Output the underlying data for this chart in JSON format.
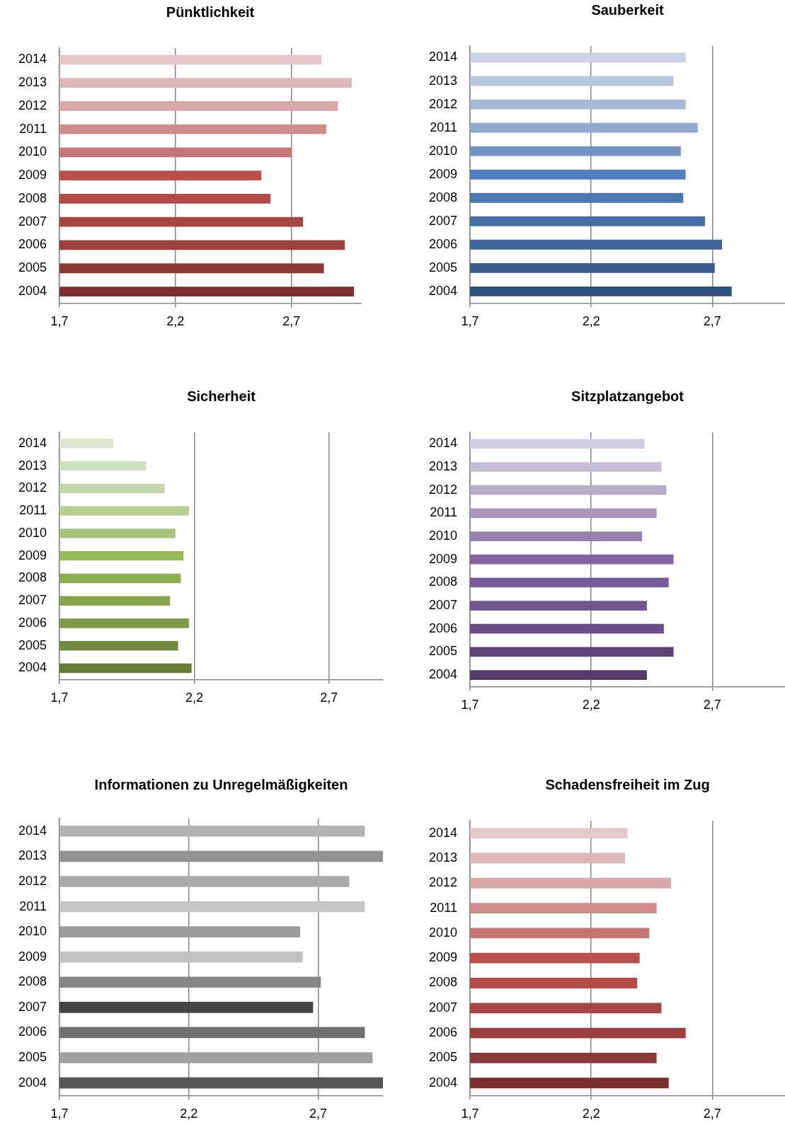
{
  "chart_data": [
    {
      "type": "bar",
      "orientation": "horizontal",
      "title": "Pünktlichkeit",
      "categories": [
        "2014",
        "2013",
        "2012",
        "2011",
        "2010",
        "2009",
        "2008",
        "2007",
        "2006",
        "2005",
        "2004"
      ],
      "values": [
        2.83,
        2.96,
        2.9,
        2.85,
        2.7,
        2.57,
        2.61,
        2.75,
        2.93,
        2.84,
        2.97
      ],
      "colors": [
        "#e5c8c9",
        "#ddb8b8",
        "#d8a7a7",
        "#d08c8c",
        "#c57573",
        "#bc4f4d",
        "#b54a48",
        "#a64644",
        "#9c403e",
        "#8b3937",
        "#7c2f2e"
      ],
      "xlim": [
        1.7,
        3.0
      ],
      "xticks": [
        {
          "value": 1.7,
          "label": "1,7"
        },
        {
          "value": 2.2,
          "label": "2,2"
        },
        {
          "value": 2.7,
          "label": "2,7"
        }
      ],
      "grid": "x"
    },
    {
      "type": "bar",
      "orientation": "horizontal",
      "title": "Sauberkeit",
      "categories": [
        "2014",
        "2013",
        "2012",
        "2011",
        "2010",
        "2009",
        "2008",
        "2007",
        "2006",
        "2005",
        "2004"
      ],
      "values": [
        2.59,
        2.54,
        2.59,
        2.64,
        2.57,
        2.59,
        2.58,
        2.67,
        2.74,
        2.71,
        2.78
      ],
      "colors": [
        "#cbd3e6",
        "#b9c6e0",
        "#a8b9d8",
        "#91a9d1",
        "#7393c4",
        "#4f7fbe",
        "#4a78b0",
        "#436fa6",
        "#3f659a",
        "#395c8a",
        "#30517b"
      ],
      "xlim": [
        1.7,
        3.0
      ],
      "xticks": [
        {
          "value": 1.7,
          "label": "1,7"
        },
        {
          "value": 2.2,
          "label": "2,2"
        },
        {
          "value": 2.7,
          "label": "2,7"
        }
      ],
      "grid": "x"
    },
    {
      "type": "bar",
      "orientation": "horizontal",
      "title": "Sicherheit",
      "categories": [
        "2014",
        "2013",
        "2012",
        "2011",
        "2010",
        "2009",
        "2008",
        "2007",
        "2006",
        "2005",
        "2004"
      ],
      "values": [
        1.9,
        2.02,
        2.09,
        2.18,
        2.13,
        2.16,
        2.15,
        2.11,
        2.18,
        2.14,
        2.19
      ],
      "colors": [
        "#dbe6d1",
        "#d1e0c0",
        "#c4d6ab",
        "#b7cf93",
        "#a8c47c",
        "#98ba58",
        "#8fad52",
        "#86a24c",
        "#7d9846",
        "#728b41",
        "#667d38"
      ],
      "xlim": [
        1.7,
        2.9
      ],
      "xticks": [
        {
          "value": 1.7,
          "label": "1,7"
        },
        {
          "value": 2.2,
          "label": "2,2"
        },
        {
          "value": 2.7,
          "label": "2,7"
        }
      ],
      "grid": "x"
    },
    {
      "type": "bar",
      "orientation": "horizontal",
      "title": "Sitzplatzangebot",
      "categories": [
        "2014",
        "2013",
        "2012",
        "2011",
        "2010",
        "2009",
        "2008",
        "2007",
        "2006",
        "2005",
        "2004"
      ],
      "values": [
        2.42,
        2.49,
        2.51,
        2.47,
        2.41,
        2.54,
        2.52,
        2.43,
        2.5,
        2.54,
        2.43
      ],
      "colors": [
        "#d3cedf",
        "#c5bcd5",
        "#b8adc9",
        "#a796bd",
        "#9682b1",
        "#8264a2",
        "#775d98",
        "#6f578f",
        "#665084",
        "#5c4576",
        "#523e69"
      ],
      "xlim": [
        1.7,
        3.0
      ],
      "xticks": [
        {
          "value": 1.7,
          "label": "1,7"
        },
        {
          "value": 2.2,
          "label": "2,2"
        },
        {
          "value": 2.7,
          "label": "2,7"
        }
      ],
      "grid": "x"
    },
    {
      "type": "bar",
      "orientation": "horizontal",
      "title": "Informationen zu Unregelmäßigkeiten",
      "categories": [
        "2014",
        "2013",
        "2012",
        "2011",
        "2010",
        "2009",
        "2008",
        "2007",
        "2006",
        "2005",
        "2004"
      ],
      "values": [
        2.88,
        2.95,
        2.82,
        2.88,
        2.63,
        2.64,
        2.71,
        2.68,
        2.88,
        2.91,
        2.95
      ],
      "colors": [
        "#b3b3b3",
        "#939393",
        "#a9a9a9",
        "#c6c6c6",
        "#9c9c9c",
        "#c1c1c1",
        "#868686",
        "#444444",
        "#707070",
        "#a0a0a0",
        "#555555"
      ],
      "xlim": [
        1.7,
        2.95
      ],
      "xticks": [
        {
          "value": 1.7,
          "label": "1,7"
        },
        {
          "value": 2.2,
          "label": "2,2"
        },
        {
          "value": 2.7,
          "label": "2,7"
        }
      ],
      "grid": "x"
    },
    {
      "type": "bar",
      "orientation": "horizontal",
      "title": "Schadensfreiheit im Zug",
      "categories": [
        "2014",
        "2013",
        "2012",
        "2011",
        "2010",
        "2009",
        "2008",
        "2007",
        "2006",
        "2005",
        "2004"
      ],
      "values": [
        2.35,
        2.34,
        2.53,
        2.47,
        2.44,
        2.4,
        2.39,
        2.49,
        2.59,
        2.47,
        2.52
      ],
      "colors": [
        "#e5c8c9",
        "#ddb8b8",
        "#d8a7a7",
        "#d08c8c",
        "#c57573",
        "#bc4f4d",
        "#b54a48",
        "#a64644",
        "#9c403e",
        "#8b3937",
        "#7c2f2e"
      ],
      "xlim": [
        1.7,
        3.0
      ],
      "xticks": [
        {
          "value": 1.7,
          "label": "1,7"
        },
        {
          "value": 2.2,
          "label": "2,2"
        },
        {
          "value": 2.7,
          "label": "2,7"
        }
      ],
      "grid": "x"
    }
  ]
}
